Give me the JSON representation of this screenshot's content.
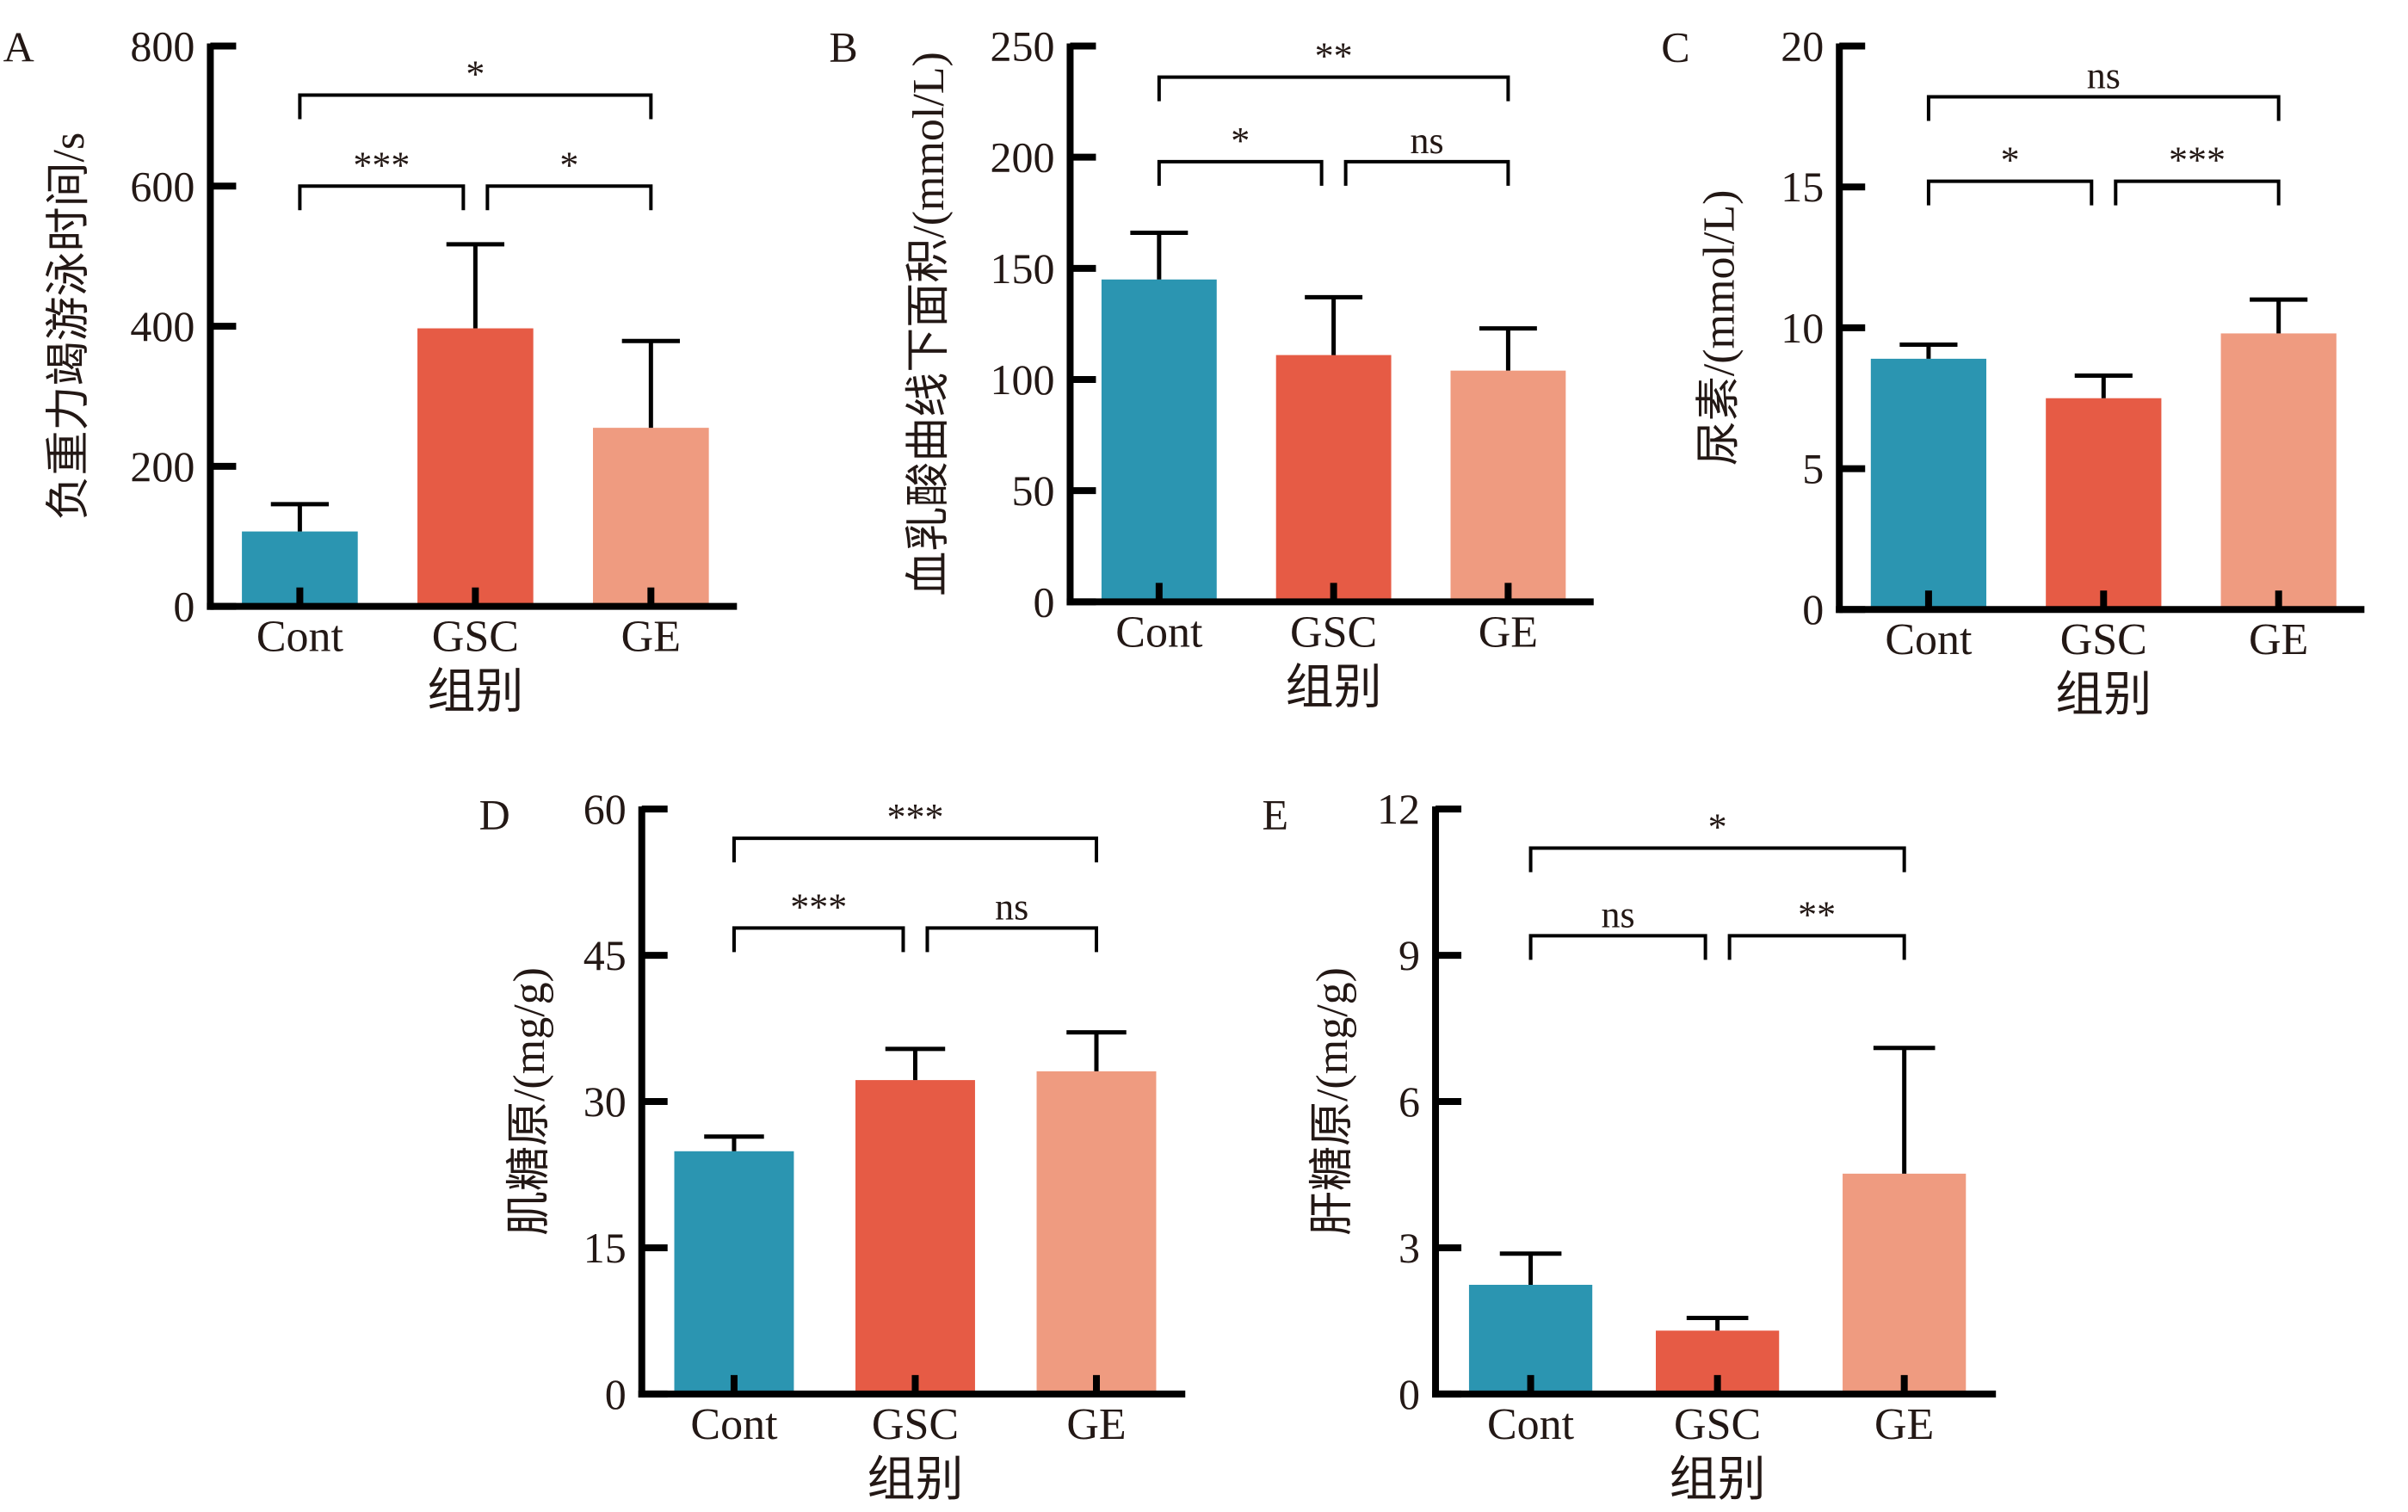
{
  "chart_data": [
    {
      "panel": "A",
      "type": "bar",
      "categories": [
        "Cont",
        "GSC",
        "GE"
      ],
      "values": [
        107,
        397,
        255
      ],
      "errors_upper": [
        146,
        517,
        379
      ],
      "xlabel": "组别",
      "ylabel": "负重力竭游泳时间/s",
      "ylim": [
        0,
        800
      ],
      "yticks": [
        0,
        200,
        400,
        600,
        800
      ],
      "significance": [
        {
          "from": 0,
          "to": 1,
          "label": "***",
          "level": "low",
          "y": 600
        },
        {
          "from": 1,
          "to": 2,
          "label": "*",
          "level": "low",
          "y": 600
        },
        {
          "from": 0,
          "to": 2,
          "label": "*",
          "level": "high",
          "y": 730
        }
      ]
    },
    {
      "panel": "B",
      "type": "bar",
      "categories": [
        "Cont",
        "GSC",
        "GE"
      ],
      "values": [
        145,
        111,
        104
      ],
      "errors_upper": [
        166,
        137,
        123
      ],
      "xlabel": "组别",
      "ylabel": "血乳酸曲线下面积/(mmol/L)",
      "ylim": [
        0,
        250
      ],
      "yticks": [
        0,
        50,
        100,
        150,
        200,
        250
      ],
      "significance": [
        {
          "from": 0,
          "to": 1,
          "label": "*",
          "level": "low",
          "y": 198
        },
        {
          "from": 1,
          "to": 2,
          "label": "ns",
          "level": "low",
          "y": 198
        },
        {
          "from": 0,
          "to": 2,
          "label": "**",
          "level": "high",
          "y": 236
        }
      ]
    },
    {
      "panel": "C",
      "type": "bar",
      "categories": [
        "Cont",
        "GSC",
        "GE"
      ],
      "values": [
        8.9,
        7.5,
        9.8
      ],
      "errors_upper": [
        9.4,
        8.3,
        11.0
      ],
      "xlabel": "组别",
      "ylabel": "尿素/(mmol/L)",
      "ylim": [
        0,
        20
      ],
      "yticks": [
        0,
        5,
        10,
        15,
        20
      ],
      "significance": [
        {
          "from": 0,
          "to": 1,
          "label": "*",
          "level": "low",
          "y": 15.2
        },
        {
          "from": 1,
          "to": 2,
          "label": "***",
          "level": "low",
          "y": 15.2
        },
        {
          "from": 0,
          "to": 2,
          "label": "ns",
          "level": "high",
          "y": 18.2
        }
      ]
    },
    {
      "panel": "D",
      "type": "bar",
      "categories": [
        "Cont",
        "GSC",
        "GE"
      ],
      "values": [
        24.9,
        32.2,
        33.1
      ],
      "errors_upper": [
        26.4,
        35.4,
        37.1
      ],
      "xlabel": "组别",
      "ylabel": "肌糖原/(mg/g)",
      "ylim": [
        0,
        60
      ],
      "yticks": [
        0,
        15,
        30,
        45,
        60
      ],
      "significance": [
        {
          "from": 0,
          "to": 1,
          "label": "***",
          "level": "low",
          "y": 47.8
        },
        {
          "from": 1,
          "to": 2,
          "label": "ns",
          "level": "low",
          "y": 47.8
        },
        {
          "from": 0,
          "to": 2,
          "label": "***",
          "level": "high",
          "y": 57
        }
      ]
    },
    {
      "panel": "E",
      "type": "bar",
      "categories": [
        "Cont",
        "GSC",
        "GE"
      ],
      "values": [
        2.24,
        1.3,
        4.52
      ],
      "errors_upper": [
        2.88,
        1.56,
        7.1
      ],
      "xlabel": "组别",
      "ylabel": "肝糖原/(mg/g)",
      "ylim": [
        0,
        12
      ],
      "yticks": [
        0,
        3,
        6,
        9,
        12
      ],
      "significance": [
        {
          "from": 0,
          "to": 1,
          "label": "ns",
          "level": "low",
          "y": 9.4
        },
        {
          "from": 1,
          "to": 2,
          "label": "**",
          "level": "low",
          "y": 9.4
        },
        {
          "from": 0,
          "to": 2,
          "label": "*",
          "level": "high",
          "y": 11.2
        }
      ]
    }
  ],
  "colors": {
    "Cont": "#2b95b1",
    "GSC": "#e65b45",
    "GE": "#ef9b80",
    "axis": "#000000",
    "text": "#231815"
  }
}
